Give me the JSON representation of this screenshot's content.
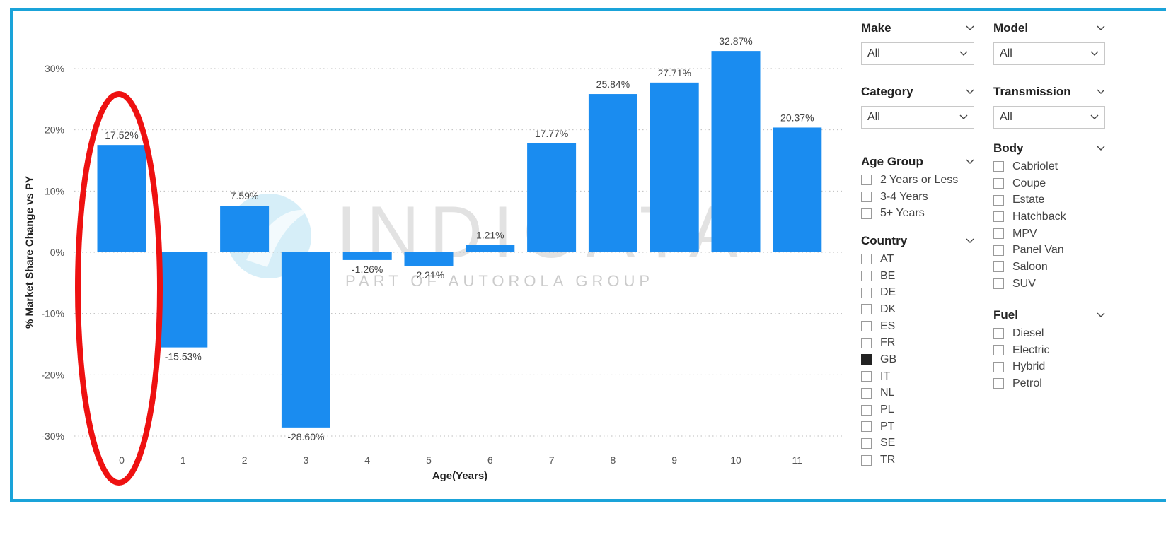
{
  "chart_data": {
    "type": "bar",
    "categories": [
      "0",
      "1",
      "2",
      "3",
      "4",
      "5",
      "6",
      "7",
      "8",
      "9",
      "10",
      "11"
    ],
    "values": [
      17.52,
      -15.53,
      7.59,
      -28.6,
      -1.26,
      -2.21,
      1.21,
      17.77,
      25.84,
      27.71,
      32.87,
      20.37
    ],
    "value_labels": [
      "17.52%",
      "-15.53%",
      "7.59%",
      "-28.60%",
      "-1.26%",
      "-2.21%",
      "1.21%",
      "17.77%",
      "25.84%",
      "27.71%",
      "32.87%",
      "20.37%"
    ],
    "xlabel": "Age(Years)",
    "ylabel": "% Market Share Change vs PY",
    "ylim": [
      -30,
      30
    ],
    "yticks": [
      "30%",
      "20%",
      "10%",
      "0%",
      "-10%",
      "-20%",
      "-30%"
    ],
    "grid": true,
    "bar_color": "#1a8cf0",
    "highlight": {
      "category": "0",
      "color": "#ee1111"
    }
  },
  "watermark": {
    "text": "INDICATA",
    "subtext": "PART OF AUTOROLA GROUP"
  },
  "filters": {
    "make": {
      "title": "Make",
      "value": "All"
    },
    "model": {
      "title": "Model",
      "value": "All"
    },
    "category": {
      "title": "Category",
      "value": "All"
    },
    "transmission": {
      "title": "Transmission",
      "value": "All"
    },
    "age_group": {
      "title": "Age Group",
      "options": [
        "2 Years or Less",
        "3-4 Years",
        "5+ Years"
      ]
    },
    "body": {
      "title": "Body",
      "options": [
        "Cabriolet",
        "Coupe",
        "Estate",
        "Hatchback",
        "MPV",
        "Panel Van",
        "Saloon",
        "SUV"
      ]
    },
    "country": {
      "title": "Country",
      "options": [
        "AT",
        "BE",
        "DE",
        "DK",
        "ES",
        "FR",
        "GB",
        "IT",
        "NL",
        "PL",
        "PT",
        "SE",
        "TR"
      ],
      "selected": "GB"
    },
    "fuel": {
      "title": "Fuel",
      "options": [
        "Diesel",
        "Electric",
        "Hybrid",
        "Petrol"
      ]
    }
  },
  "colors": {
    "frame": "#1aa3d9",
    "checked": "#222222"
  },
  "icons": {
    "chevron": "chevron-down-icon"
  }
}
